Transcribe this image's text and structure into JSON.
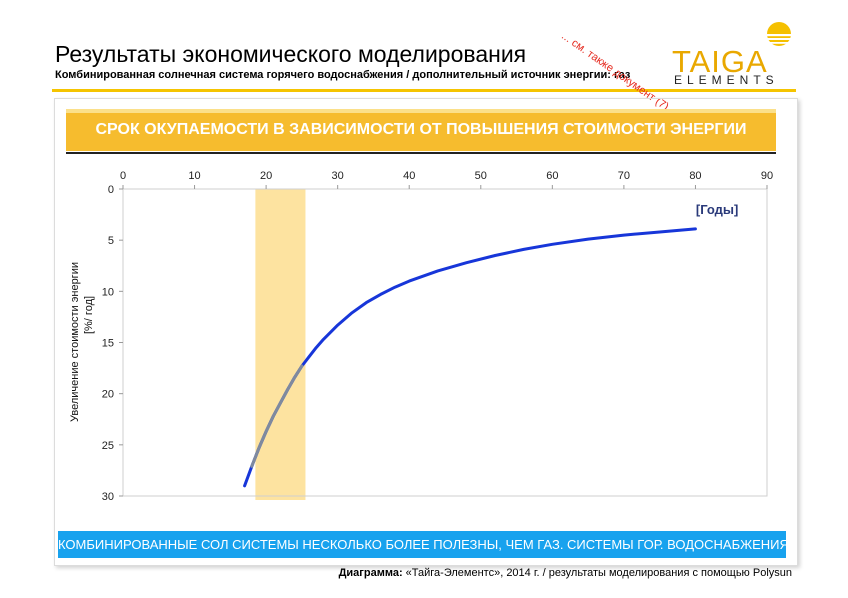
{
  "header": {
    "title": "Результаты экономического моделирования",
    "subtitle": "Комбинированная солнечная система горячего водоснабжения / дополнительный источник энергии: газ",
    "see_also": "... см. также документ (7)"
  },
  "logo": {
    "word": "TAIGA",
    "sub": "ELEMENTS",
    "color": "#e9a800",
    "icon": "sun-over-water-icon"
  },
  "banner": {
    "text": "СРОК ОКУПАЕМОСТИ В ЗАВИСИМОСТИ ОТ ПОВЫШЕНИЯ СТОИМОСТИ ЭНЕРГИИ",
    "color": "#f6bc2e"
  },
  "chart_data": {
    "type": "line",
    "title": "СРОК ОКУПАЕМОСТИ В ЗАВИСИМОСТИ ОТ ПОВЫШЕНИЯ СТОИМОСТИ ЭНЕРГИИ",
    "xlabel": "[Годы]",
    "ylabel_line1": "Увеличение стоимости энергии",
    "ylabel_line2": "[%/ год]",
    "x_axis_position": "top",
    "y_inverted": true,
    "xlim": [
      0,
      90
    ],
    "ylim": [
      0,
      30
    ],
    "xticks": [
      "0",
      "10",
      "20",
      "30",
      "40",
      "50",
      "60",
      "70",
      "80",
      "90"
    ],
    "yticks": [
      "0",
      "5",
      "10",
      "15",
      "20",
      "25",
      "30"
    ],
    "grid": false,
    "highlight_band": {
      "x_range": [
        18.5,
        25.5
      ],
      "color": "#fde3a0"
    },
    "series": [
      {
        "color": "#1736d9",
        "x": [
          17,
          18,
          19,
          20,
          21,
          22,
          23,
          24,
          25,
          26,
          27,
          28,
          30,
          32,
          34,
          36,
          38,
          40,
          44,
          48,
          52,
          56,
          60,
          65,
          70,
          75,
          80
        ],
        "y": [
          29,
          27.1,
          25.3,
          23.7,
          22.2,
          20.9,
          19.6,
          18.4,
          17.3,
          16.4,
          15.5,
          14.7,
          13.3,
          12.1,
          11.1,
          10.3,
          9.6,
          9.0,
          8.0,
          7.2,
          6.5,
          5.9,
          5.4,
          4.9,
          4.5,
          4.2,
          3.9
        ]
      }
    ]
  },
  "footer": {
    "text": "КОМБИНИРОВАННЫЕ СОЛ СИСТЕМЫ НЕСКОЛЬКО БОЛЕЕ ПОЛЕЗНЫ, ЧЕМ ГАЗ. СИСТЕМЫ ГОР. ВОДОСНАБЖЕНИЯ",
    "color": "#18a2ee"
  },
  "caption": {
    "label": "Диаграмма:",
    "text": " «Тайга-Элементс», 2014 г. / результаты моделирования с помощью Polysun"
  }
}
